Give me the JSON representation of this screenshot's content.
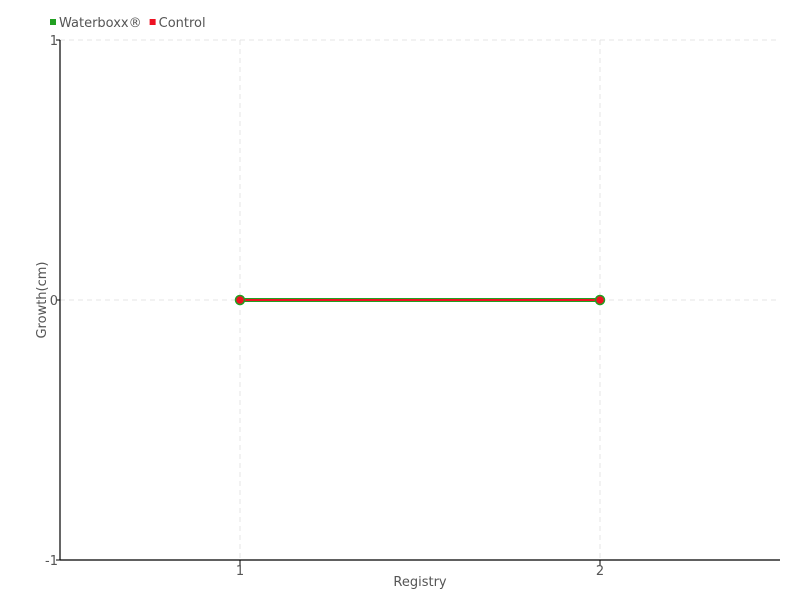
{
  "chart_data": {
    "type": "line",
    "title": "",
    "xlabel": "Registry",
    "ylabel": "Growth(cm)",
    "x": [
      1,
      2
    ],
    "x_ticks": [
      "1",
      "2"
    ],
    "xlim": [
      0.5,
      2.5
    ],
    "y_ticks": [
      "1",
      "0",
      "-1"
    ],
    "ylim": [
      -1,
      1
    ],
    "grid": true,
    "legend_placement": "top-left",
    "series": [
      {
        "name": "Waterboxx®",
        "color": "#22a022",
        "values": [
          0,
          0
        ]
      },
      {
        "name": "Control",
        "color": "#ee1122",
        "values": [
          0,
          0
        ]
      }
    ]
  }
}
